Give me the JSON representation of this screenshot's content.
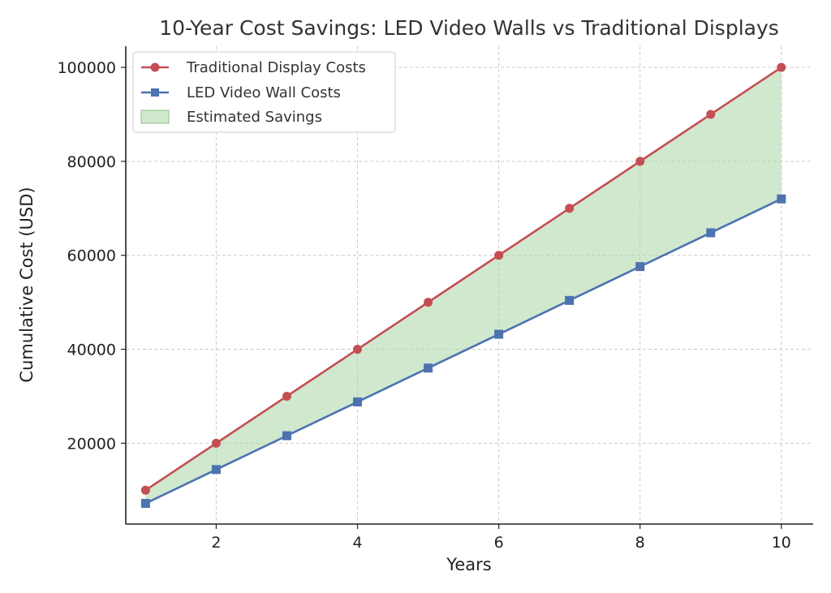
{
  "chart_data": {
    "type": "line",
    "title": "10-Year Cost Savings: LED Video Walls vs Traditional Displays",
    "xlabel": "Years",
    "ylabel": "Cumulative Cost (USD)",
    "x": [
      1,
      2,
      3,
      4,
      5,
      6,
      7,
      8,
      9,
      10
    ],
    "xlim": [
      0.72,
      10.45
    ],
    "ylim": [
      2800,
      104500
    ],
    "xticks": [
      2,
      4,
      6,
      8,
      10
    ],
    "yticks": [
      20000,
      40000,
      60000,
      80000,
      100000
    ],
    "grid": true,
    "legend_position": "top-left",
    "series": [
      {
        "name": "Traditional Display Costs",
        "marker": "circle",
        "color": "#c44e52",
        "values": [
          10000,
          20000,
          30000,
          40000,
          50000,
          60000,
          70000,
          80000,
          90000,
          100000
        ]
      },
      {
        "name": "LED Video Wall Costs",
        "marker": "square",
        "color": "#4c72b0",
        "values": [
          7200,
          14400,
          21600,
          28800,
          36000,
          43200,
          50400,
          57600,
          64800,
          72000
        ]
      }
    ],
    "fill_between": {
      "name": "Estimated Savings",
      "color": "#a9d5a5",
      "between": [
        "Traditional Display Costs",
        "LED Video Wall Costs"
      ]
    }
  }
}
